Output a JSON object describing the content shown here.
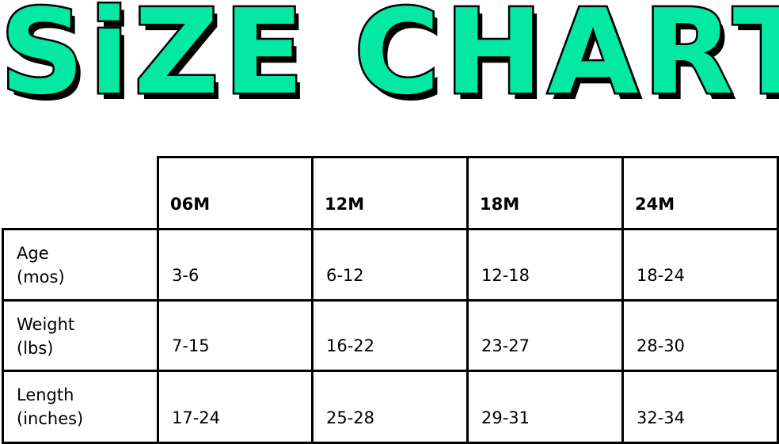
{
  "title": "SiZE CHART",
  "title_color": "#03E9A4",
  "table": {
    "columns": [
      "06M",
      "12M",
      "18M",
      "24M"
    ],
    "rows": [
      {
        "label": "Age\n(mos)",
        "values": [
          "3-6",
          "6-12",
          "12-18",
          "18-24"
        ]
      },
      {
        "label": "Weight\n(lbs)",
        "values": [
          "7-15",
          "16-22",
          "23-27",
          "28-30"
        ]
      },
      {
        "label": "Length\n(inches)",
        "values": [
          "17-24",
          "25-28",
          "29-31",
          "32-34"
        ]
      }
    ]
  }
}
